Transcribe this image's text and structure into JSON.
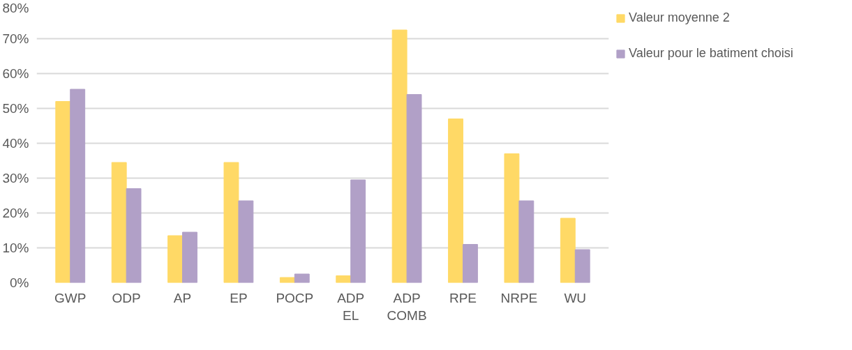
{
  "chart_data": {
    "type": "bar",
    "categories": [
      "GWP",
      "ODP",
      "AP",
      "EP",
      "POCP",
      "ADP\nEL",
      "ADP\nCOMB",
      "RPE",
      "NRPE",
      "WU"
    ],
    "series": [
      {
        "name": "Valeur moyenne 2",
        "color": "#ffd966",
        "values": [
          52,
          34.5,
          13.5,
          34.5,
          1.5,
          2,
          72.5,
          47,
          37,
          18.5
        ]
      },
      {
        "name": "Valeur pour le batiment choisi",
        "color": "#b1a0c7",
        "values": [
          55.5,
          27,
          14.5,
          23.5,
          2.5,
          29.5,
          54,
          11,
          23.5,
          9.5
        ]
      }
    ],
    "ylim": [
      0,
      80
    ],
    "yticks": [
      {
        "value": 0,
        "label": "0%"
      },
      {
        "value": 10,
        "label": "10%"
      },
      {
        "value": 20,
        "label": "20%"
      },
      {
        "value": 30,
        "label": "30%"
      },
      {
        "value": 40,
        "label": "40%"
      },
      {
        "value": 50,
        "label": "50%"
      },
      {
        "value": 60,
        "label": "60%"
      },
      {
        "value": 70,
        "label": "70%"
      },
      {
        "value": 80,
        "label": "80%"
      }
    ],
    "grid": "y",
    "legend": "right"
  }
}
